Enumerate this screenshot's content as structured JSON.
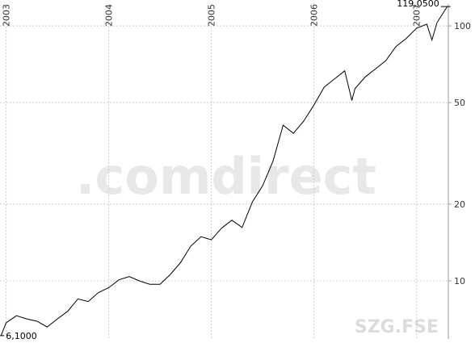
{
  "chart_data": {
    "type": "line",
    "log_y": true,
    "grid": true,
    "color": "#000000",
    "watermark": ".comdirect",
    "symbol": "SZG.FSE",
    "x": [
      2002.95,
      2003.0,
      2003.1,
      2003.2,
      2003.3,
      2003.4,
      2003.5,
      2003.6,
      2003.7,
      2003.8,
      2003.9,
      2004.0,
      2004.1,
      2004.2,
      2004.3,
      2004.4,
      2004.5,
      2004.6,
      2004.7,
      2004.8,
      2004.9,
      2005.0,
      2005.1,
      2005.2,
      2005.3,
      2005.4,
      2005.5,
      2005.6,
      2005.7,
      2005.8,
      2005.9,
      2006.0,
      2006.1,
      2006.2,
      2006.3,
      2006.37,
      2006.4,
      2006.5,
      2006.6,
      2006.7,
      2006.8,
      2006.9,
      2007.0,
      2007.1,
      2007.15,
      2007.2,
      2007.3
    ],
    "values": [
      6.1,
      6.85,
      7.3,
      7.1,
      6.95,
      6.6,
      7.1,
      7.6,
      8.5,
      8.3,
      9.0,
      9.4,
      10.1,
      10.4,
      10.0,
      9.7,
      9.7,
      10.6,
      11.8,
      13.7,
      14.9,
      14.5,
      16.1,
      17.3,
      16.2,
      20.4,
      23.6,
      29.4,
      40.8,
      37.9,
      42.3,
      48.9,
      57.5,
      61.9,
      66.6,
      51.0,
      56.7,
      63.1,
      67.8,
      73.0,
      83.0,
      89.3,
      97.9,
      101.6,
      88.0,
      103.1,
      119.05
    ],
    "xlim": [
      2002.94,
      2007.31
    ],
    "xticks": [
      2003,
      2004,
      2005,
      2006,
      2007
    ],
    "ylim": [
      5.92,
      121.8
    ],
    "yticks": [
      10,
      20,
      50,
      100
    ],
    "annotations": [
      {
        "label": "119,0500",
        "value": 119.05,
        "x": 2007.3
      },
      {
        "label": "6,1000",
        "value": 6.1,
        "x": 2002.95
      }
    ]
  }
}
